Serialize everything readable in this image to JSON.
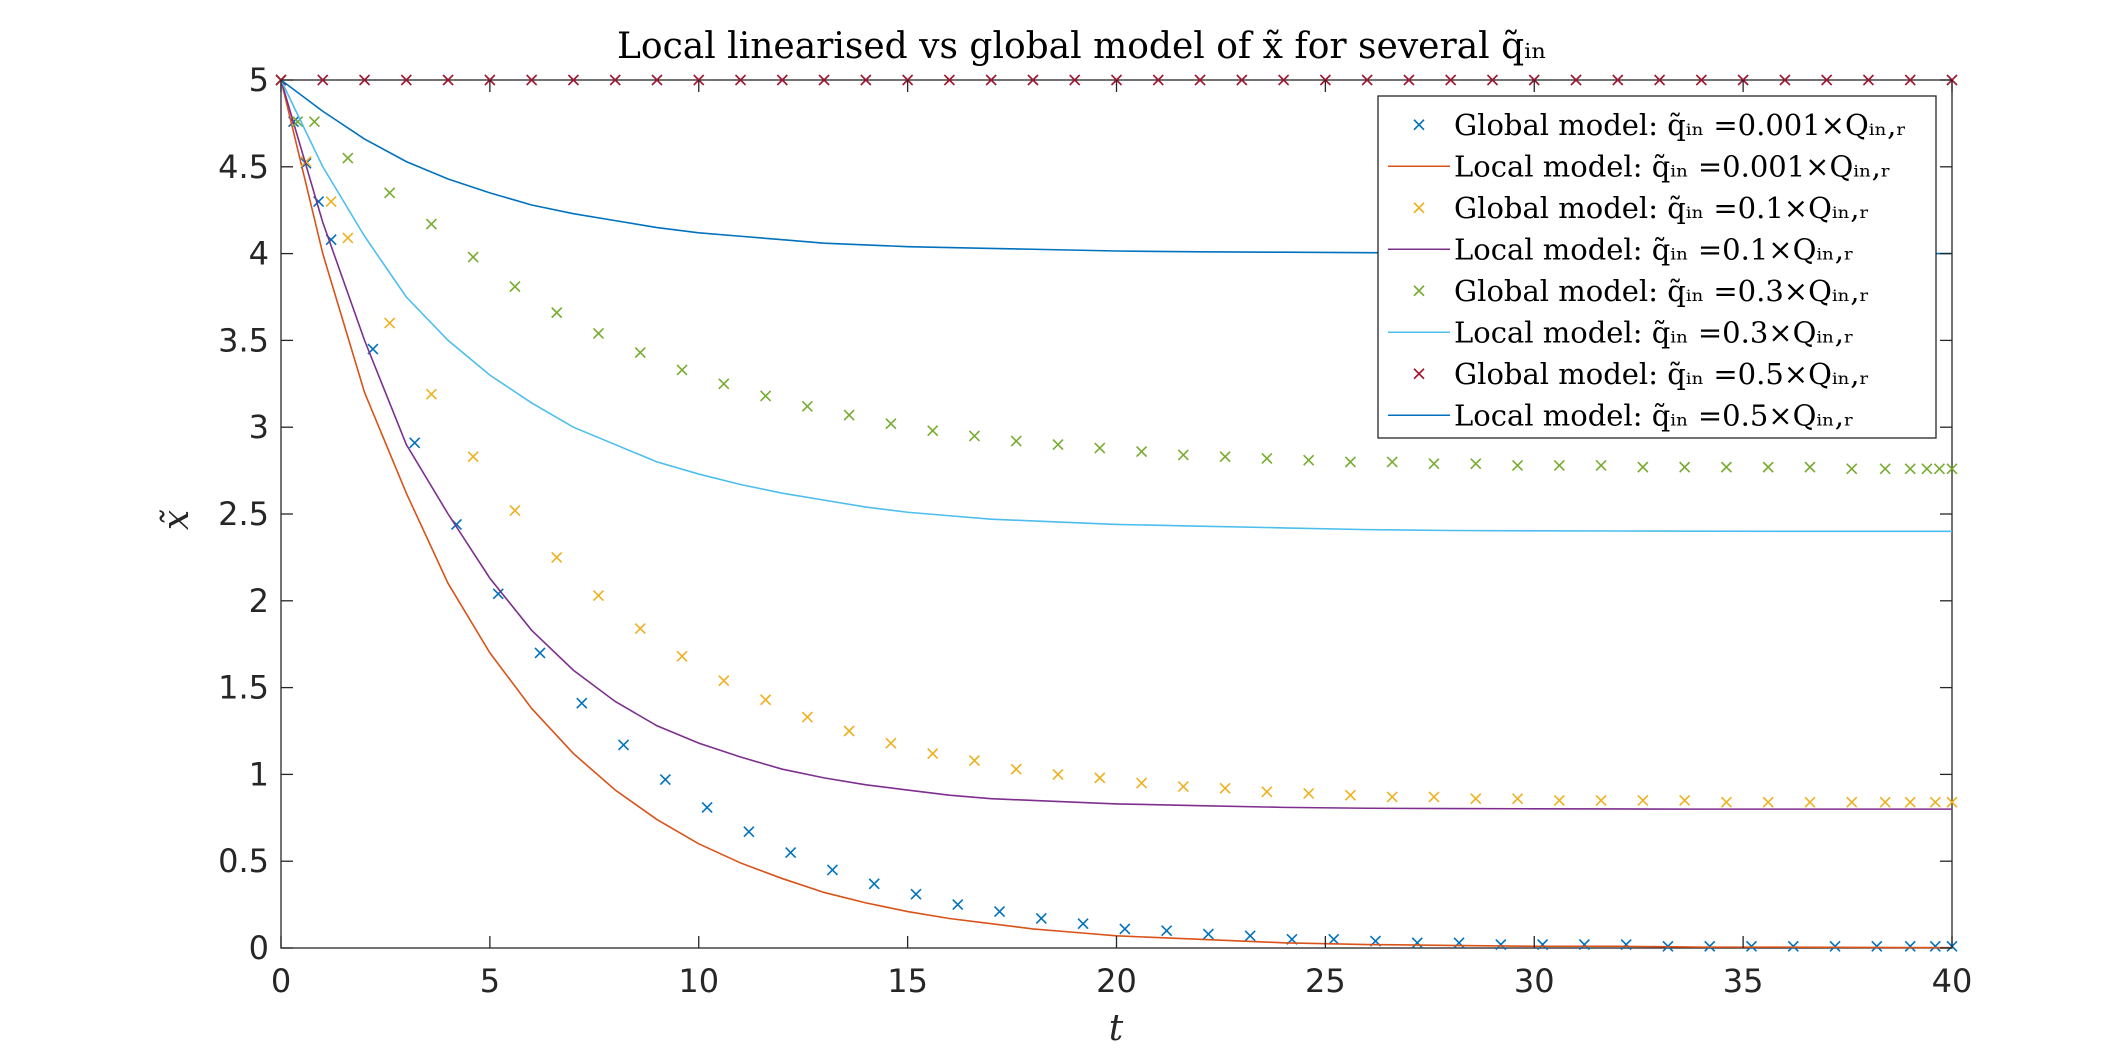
{
  "chart_data": {
    "type": "line",
    "title": "Local linearised vs global model of x̃ for several q̃ᵢₙ",
    "xlabel": "t",
    "ylabel": "x̃",
    "xlim": [
      0,
      40
    ],
    "ylim": [
      0,
      5
    ],
    "xticks": [
      "0",
      "5",
      "10",
      "15",
      "20",
      "25",
      "30",
      "35",
      "40"
    ],
    "yticks": [
      "0",
      "0.5",
      "1",
      "1.5",
      "2",
      "2.5",
      "3",
      "3.5",
      "4",
      "4.5",
      "5"
    ],
    "grid": false,
    "legend_position": "top-right",
    "series": [
      {
        "name": "Global model: q̃ᵢₙ =0.001×Qᵢₙ,ᵣ",
        "kind": "markers",
        "color": "#0072BD",
        "x": [
          0,
          0.3,
          0.6,
          0.9,
          1.2,
          2.2,
          3.2,
          4.2,
          5.2,
          6.2,
          7.2,
          8.2,
          9.2,
          10.2,
          11.2,
          12.2,
          13.2,
          14.2,
          15.2,
          16.2,
          17.2,
          18.2,
          19.2,
          20.2,
          21.2,
          22.2,
          23.2,
          24.2,
          25.2,
          26.2,
          27.2,
          28.2,
          29.2,
          30.2,
          31.2,
          32.2,
          33.2,
          34.2,
          35.2,
          36.2,
          37.2,
          38.2,
          39.0,
          39.6,
          40
        ],
        "y": [
          5,
          4.76,
          4.52,
          4.3,
          4.08,
          3.45,
          2.91,
          2.44,
          2.04,
          1.7,
          1.41,
          1.17,
          0.97,
          0.81,
          0.67,
          0.55,
          0.45,
          0.37,
          0.31,
          0.25,
          0.21,
          0.17,
          0.14,
          0.11,
          0.1,
          0.08,
          0.07,
          0.05,
          0.05,
          0.04,
          0.03,
          0.03,
          0.02,
          0.02,
          0.02,
          0.02,
          0.01,
          0.01,
          0.01,
          0.01,
          0.01,
          0.01,
          0.01,
          0.01,
          0.01
        ]
      },
      {
        "name": "Local model: q̃ᵢₙ =0.001×Qᵢₙ,ᵣ",
        "kind": "line",
        "color": "#D95319",
        "x": [
          0,
          1,
          2,
          3,
          4,
          5,
          6,
          7,
          8,
          9,
          10,
          11,
          12,
          13,
          14,
          15,
          16,
          17,
          18,
          19,
          20,
          22,
          24,
          26,
          28,
          30,
          32,
          34,
          36,
          38,
          40
        ],
        "y": [
          5,
          4.0,
          3.2,
          2.62,
          2.1,
          1.7,
          1.38,
          1.12,
          0.91,
          0.74,
          0.6,
          0.49,
          0.4,
          0.32,
          0.26,
          0.21,
          0.17,
          0.14,
          0.11,
          0.09,
          0.07,
          0.05,
          0.03,
          0.02,
          0.015,
          0.01,
          0.01,
          0.005,
          0.005,
          0.003,
          0.002
        ]
      },
      {
        "name": "Global model: q̃ᵢₙ =0.1×Qᵢₙ,ᵣ",
        "kind": "markers",
        "color": "#EDB120",
        "x": [
          0,
          0.6,
          1.2,
          1.6,
          2.6,
          3.6,
          4.6,
          5.6,
          6.6,
          7.6,
          8.6,
          9.6,
          10.6,
          11.6,
          12.6,
          13.6,
          14.6,
          15.6,
          16.6,
          17.6,
          18.6,
          19.6,
          20.6,
          21.6,
          22.6,
          23.6,
          24.6,
          25.6,
          26.6,
          27.6,
          28.6,
          29.6,
          30.6,
          31.6,
          32.6,
          33.6,
          34.6,
          35.6,
          36.6,
          37.6,
          38.4,
          39.0,
          39.6,
          40
        ],
        "y": [
          5,
          4.53,
          4.3,
          4.09,
          3.6,
          3.19,
          2.83,
          2.52,
          2.25,
          2.03,
          1.84,
          1.68,
          1.54,
          1.43,
          1.33,
          1.25,
          1.18,
          1.12,
          1.08,
          1.03,
          1.0,
          0.98,
          0.95,
          0.93,
          0.92,
          0.9,
          0.89,
          0.88,
          0.87,
          0.87,
          0.86,
          0.86,
          0.85,
          0.85,
          0.85,
          0.85,
          0.84,
          0.84,
          0.84,
          0.84,
          0.84,
          0.84,
          0.84,
          0.84
        ]
      },
      {
        "name": "Local model: q̃ᵢₙ =0.1×Qᵢₙ,ᵣ",
        "kind": "line",
        "color": "#7E2F8E",
        "x": [
          0,
          1,
          2,
          3,
          4,
          5,
          6,
          7,
          8,
          9,
          10,
          11,
          12,
          13,
          14,
          15,
          16,
          17,
          18,
          19,
          20,
          22,
          24,
          26,
          28,
          30,
          32,
          34,
          36,
          38,
          40
        ],
        "y": [
          5,
          4.18,
          3.5,
          2.9,
          2.5,
          2.13,
          1.83,
          1.6,
          1.42,
          1.28,
          1.18,
          1.1,
          1.03,
          0.98,
          0.94,
          0.91,
          0.88,
          0.86,
          0.85,
          0.84,
          0.83,
          0.82,
          0.81,
          0.805,
          0.803,
          0.802,
          0.801,
          0.8,
          0.8,
          0.8,
          0.8
        ]
      },
      {
        "name": "Global model: q̃ᵢₙ =0.3×Qᵢₙ,ᵣ",
        "kind": "markers",
        "color": "#77AC30",
        "x": [
          0,
          0.4,
          0.8,
          1.6,
          2.6,
          3.6,
          4.6,
          5.6,
          6.6,
          7.6,
          8.6,
          9.6,
          10.6,
          11.6,
          12.6,
          13.6,
          14.6,
          15.6,
          16.6,
          17.6,
          18.6,
          19.6,
          20.6,
          21.6,
          22.6,
          23.6,
          24.6,
          25.6,
          26.6,
          27.6,
          28.6,
          29.6,
          30.6,
          31.6,
          32.6,
          33.6,
          34.6,
          35.6,
          36.6,
          37.6,
          38.4,
          39.0,
          39.4,
          39.7,
          40
        ],
        "y": [
          5,
          4.76,
          4.76,
          4.55,
          4.35,
          4.17,
          3.98,
          3.81,
          3.66,
          3.54,
          3.43,
          3.33,
          3.25,
          3.18,
          3.12,
          3.07,
          3.02,
          2.98,
          2.95,
          2.92,
          2.9,
          2.88,
          2.86,
          2.84,
          2.83,
          2.82,
          2.81,
          2.8,
          2.8,
          2.79,
          2.79,
          2.78,
          2.78,
          2.78,
          2.77,
          2.77,
          2.77,
          2.77,
          2.77,
          2.76,
          2.76,
          2.76,
          2.76,
          2.76,
          2.76
        ]
      },
      {
        "name": "Local model: q̃ᵢₙ =0.3×Qᵢₙ,ᵣ",
        "kind": "line",
        "color": "#4DBEEE",
        "x": [
          0,
          1,
          2,
          3,
          4,
          5,
          6,
          7,
          8,
          9,
          10,
          11,
          12,
          13,
          14,
          15,
          16,
          17,
          18,
          19,
          20,
          22,
          24,
          26,
          28,
          30,
          32,
          34,
          36,
          38,
          40
        ],
        "y": [
          5,
          4.5,
          4.1,
          3.75,
          3.5,
          3.3,
          3.14,
          3.0,
          2.9,
          2.8,
          2.73,
          2.67,
          2.62,
          2.58,
          2.54,
          2.51,
          2.49,
          2.47,
          2.46,
          2.45,
          2.44,
          2.43,
          2.42,
          2.41,
          2.405,
          2.403,
          2.402,
          2.401,
          2.4,
          2.4,
          2.4
        ]
      },
      {
        "name": "Global model: q̃ᵢₙ =0.5×Qᵢₙ,ᵣ",
        "kind": "markers",
        "color": "#A2142F",
        "x": [
          0,
          1,
          2,
          3,
          4,
          5,
          6,
          7,
          8,
          9,
          10,
          11,
          12,
          13,
          14,
          15,
          16,
          17,
          18,
          19,
          20,
          21,
          22,
          23,
          24,
          25,
          26,
          27,
          28,
          29,
          30,
          31,
          32,
          33,
          34,
          35,
          36,
          37,
          38,
          39,
          40
        ],
        "y": [
          5,
          5,
          5,
          5,
          5,
          5,
          5,
          5,
          5,
          5,
          5,
          5,
          5,
          5,
          5,
          5,
          5,
          5,
          5,
          5,
          5,
          5,
          5,
          5,
          5,
          5,
          5,
          5,
          5,
          5,
          5,
          5,
          5,
          5,
          5,
          5,
          5,
          5,
          5,
          5,
          5
        ]
      },
      {
        "name": "Local model: q̃ᵢₙ =0.5×Qᵢₙ,ᵣ",
        "kind": "line",
        "color": "#0072BD",
        "x": [
          0,
          1,
          2,
          3,
          4,
          5,
          6,
          7,
          8,
          9,
          10,
          11,
          12,
          13,
          14,
          15,
          16,
          17,
          18,
          19,
          20,
          22,
          24,
          26,
          28,
          30,
          32,
          34,
          36,
          38,
          40
        ],
        "y": [
          5,
          4.82,
          4.66,
          4.53,
          4.43,
          4.35,
          4.28,
          4.23,
          4.19,
          4.15,
          4.12,
          4.1,
          4.08,
          4.06,
          4.05,
          4.04,
          4.035,
          4.03,
          4.025,
          4.02,
          4.015,
          4.01,
          4.008,
          4.005,
          4.003,
          4.002,
          4.001,
          4.0,
          4.0,
          4.0,
          4.0
        ]
      }
    ]
  }
}
